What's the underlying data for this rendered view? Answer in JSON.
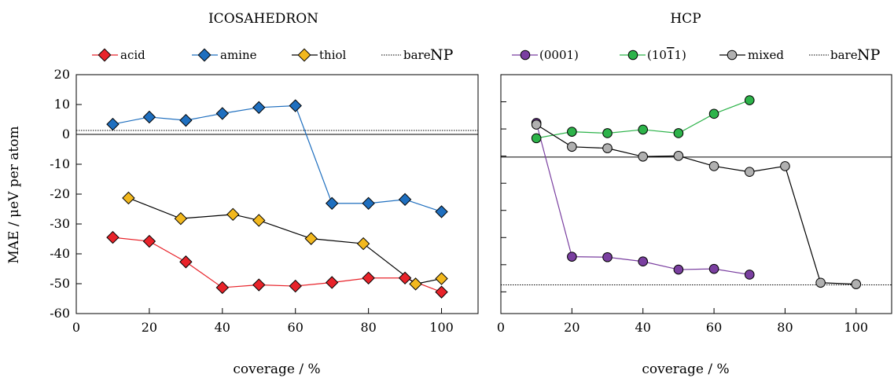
{
  "chart_data": [
    {
      "type": "line",
      "title": "ICOSAHEDRON",
      "xlabel": "coverage / %",
      "ylabel": "MAE / μeV per atom",
      "xlim": [
        0,
        110
      ],
      "ylim": [
        -60,
        20
      ],
      "xticks": [
        "0",
        "20",
        "40",
        "60",
        "80",
        "100"
      ],
      "yticks": [
        "20",
        "10",
        "0",
        "-10",
        "-20",
        "-30",
        "-40",
        "-50",
        "-60"
      ],
      "legend_position": "top",
      "grid": false,
      "reference_lines": [
        {
          "name_a": "bare",
          "name_b": "NP",
          "y": 1.3,
          "style": "dotted"
        },
        {
          "name": "",
          "y": 0,
          "style": "solid"
        }
      ],
      "series": [
        {
          "name": "acid",
          "marker": "diamond",
          "color": "#e8232a",
          "x": [
            10,
            20,
            30,
            40,
            50,
            60,
            70,
            80,
            90,
            100
          ],
          "y": [
            -34.5,
            -35.8,
            -42.7,
            -51.3,
            -50.4,
            -50.8,
            -49.6,
            -48.1,
            -48.1,
            -52.8
          ]
        },
        {
          "name": "amine",
          "marker": "diamond",
          "color": "#1f6fbf",
          "x": [
            10,
            20,
            30,
            40,
            50,
            60,
            70,
            80,
            90,
            100
          ],
          "y": [
            3.4,
            5.8,
            4.7,
            7.0,
            9.0,
            9.6,
            -23.1,
            -23.1,
            -21.8,
            -25.9
          ]
        },
        {
          "name": "thiol",
          "marker": "diamond",
          "color": "#f2b81e",
          "x": [
            14.3,
            28.6,
            42.9,
            50,
            64.3,
            78.6,
            92.9,
            100
          ],
          "y": [
            -21.3,
            -28.2,
            -26.8,
            -28.8,
            -34.9,
            -36.6,
            -50.1,
            -48.3
          ]
        }
      ]
    },
    {
      "type": "line",
      "title": "HCP",
      "xlabel": "coverage / %",
      "ylabel": "",
      "xlim": [
        0,
        110
      ],
      "xticks": [
        "0",
        "20",
        "40",
        "60",
        "80",
        "100"
      ],
      "legend_position": "top",
      "grid": false,
      "tick_labels_y": "none",
      "reference_lines": [
        {
          "name_a": "bare",
          "name_b": "NP",
          "level": 0.12,
          "style": "dotted"
        },
        {
          "name": "",
          "level": 0.655,
          "style": "solid"
        }
      ],
      "series": [
        {
          "name": "(0001)",
          "marker": "circle",
          "color": "#7a3fa0",
          "x": [
            10,
            20,
            30,
            40,
            50,
            60,
            70
          ],
          "y": [
            0.798,
            0.238,
            0.236,
            0.218,
            0.184,
            0.187,
            0.163
          ]
        },
        {
          "name": "(10̄1̄ 1)",
          "name_text": "(10",
          "name_bar": "1",
          "name_end": "1)",
          "marker": "circle",
          "color": "#2db34a",
          "x": [
            10,
            20,
            30,
            40,
            50,
            60,
            70
          ],
          "y": [
            0.734,
            0.761,
            0.755,
            0.77,
            0.755,
            0.836,
            0.893
          ]
        },
        {
          "name": "mixed",
          "marker": "circle",
          "color": "#b0b0b0",
          "x": [
            10,
            20,
            30,
            40,
            50,
            60,
            70,
            80,
            90,
            100
          ],
          "y": [
            0.791,
            0.698,
            0.692,
            0.657,
            0.66,
            0.617,
            0.593,
            0.617,
            0.129,
            0.123
          ]
        }
      ]
    }
  ]
}
